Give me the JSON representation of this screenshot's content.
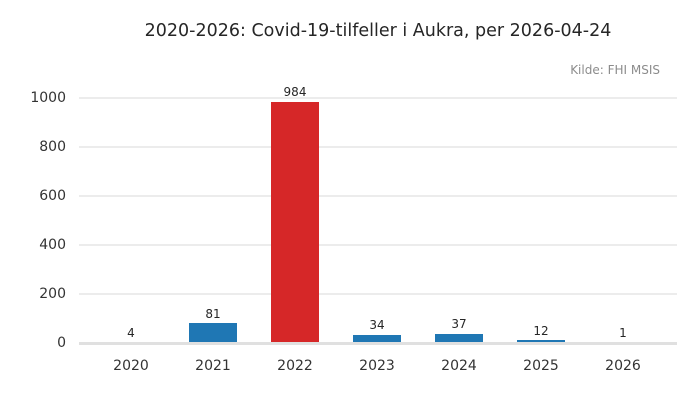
{
  "chart_data": {
    "type": "bar",
    "title": "2020-2026: Covid-19-tilfeller i Aukra, per 2026-04-24",
    "source_note": "Kilde: FHI MSIS",
    "categories": [
      "2020",
      "2021",
      "2022",
      "2023",
      "2024",
      "2025",
      "2026"
    ],
    "values": [
      4,
      81,
      984,
      34,
      37,
      12,
      1
    ],
    "bar_colors": [
      "#1f77b4",
      "#1f77b4",
      "#d62728",
      "#1f77b4",
      "#1f77b4",
      "#1f77b4",
      "#1f77b4"
    ],
    "default_bar_color": "#1f77b4",
    "highlight": {
      "category": "2022",
      "color": "#d62728"
    },
    "xlabel": "",
    "ylabel": "",
    "ylim": [
      0,
      1000
    ],
    "yticks": [
      0,
      200,
      400,
      600,
      800,
      1000
    ],
    "grid": "horizontal",
    "legend": "none",
    "value_labels_shown": true,
    "background_color": "#ffffff",
    "gridline_color": "#ececec",
    "axis_line_color": "#e0e0e0"
  }
}
